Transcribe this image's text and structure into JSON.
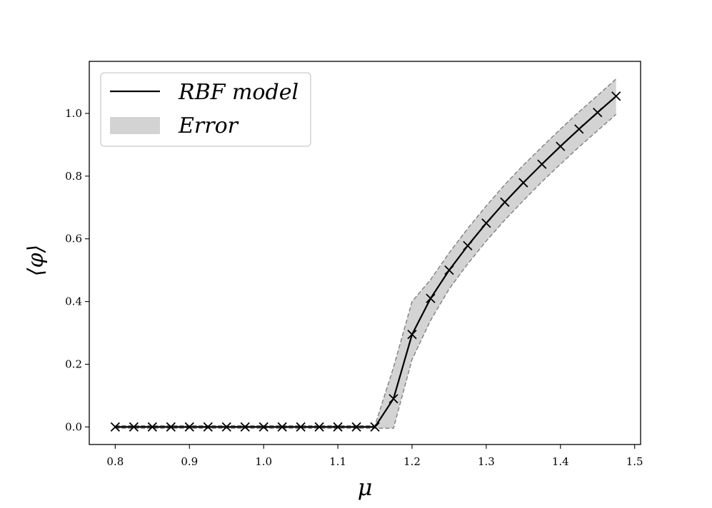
{
  "chart_data": {
    "type": "line",
    "xlabel": "μ",
    "ylabel": "⟨φ⟩",
    "xlim": [
      0.765,
      1.508
    ],
    "ylim": [
      -0.056,
      1.166
    ],
    "xticks": [
      0.8,
      0.9,
      1.0,
      1.1,
      1.2,
      1.3,
      1.4,
      1.5
    ],
    "xtick_labels": [
      "0.8",
      "0.9",
      "1.0",
      "1.1",
      "1.2",
      "1.3",
      "1.4",
      "1.5"
    ],
    "yticks": [
      0.0,
      0.2,
      0.4,
      0.6,
      0.8,
      1.0
    ],
    "ytick_labels": [
      "0.0",
      "0.2",
      "0.4",
      "0.6",
      "0.8",
      "1.0"
    ],
    "grid": false,
    "legend_position": "top-left",
    "series": [
      {
        "name": "RBF model",
        "color": "#000000",
        "marker": "x",
        "x": [
          0.8,
          0.825,
          0.85,
          0.875,
          0.9,
          0.925,
          0.95,
          0.975,
          1.0,
          1.025,
          1.05,
          1.075,
          1.1,
          1.125,
          1.15,
          1.175,
          1.2,
          1.225,
          1.25,
          1.275,
          1.3,
          1.325,
          1.35,
          1.375,
          1.4,
          1.425,
          1.45,
          1.475
        ],
        "y": [
          0.0,
          0.0,
          0.0,
          0.0,
          0.0,
          0.0,
          0.0,
          0.0,
          0.0,
          0.0,
          0.0,
          0.0,
          0.0,
          0.0,
          0.0,
          0.09,
          0.295,
          0.41,
          0.5,
          0.578,
          0.65,
          0.717,
          0.779,
          0.838,
          0.895,
          0.95,
          1.003,
          1.055
        ]
      },
      {
        "name": "Error",
        "color": "#d3d3d3",
        "edge_color": "#808080",
        "type": "band",
        "x": [
          0.8,
          0.825,
          0.85,
          0.875,
          0.9,
          0.925,
          0.95,
          0.975,
          1.0,
          1.025,
          1.05,
          1.075,
          1.1,
          1.125,
          1.15,
          1.175,
          1.2,
          1.225,
          1.25,
          1.275,
          1.3,
          1.325,
          1.35,
          1.375,
          1.4,
          1.425,
          1.45,
          1.475
        ],
        "lower": [
          -0.004,
          -0.004,
          -0.004,
          -0.004,
          -0.004,
          -0.004,
          -0.004,
          -0.004,
          -0.004,
          -0.004,
          -0.004,
          -0.004,
          -0.004,
          -0.004,
          -0.004,
          -0.004,
          0.215,
          0.34,
          0.44,
          0.52,
          0.593,
          0.66,
          0.722,
          0.782,
          0.838,
          0.893,
          0.945,
          0.997
        ],
        "upper": [
          0.004,
          0.004,
          0.004,
          0.004,
          0.004,
          0.004,
          0.004,
          0.004,
          0.004,
          0.004,
          0.004,
          0.004,
          0.004,
          0.004,
          0.004,
          0.19,
          0.4,
          0.47,
          0.555,
          0.633,
          0.705,
          0.773,
          0.835,
          0.893,
          0.95,
          1.005,
          1.057,
          1.11
        ]
      }
    ]
  }
}
